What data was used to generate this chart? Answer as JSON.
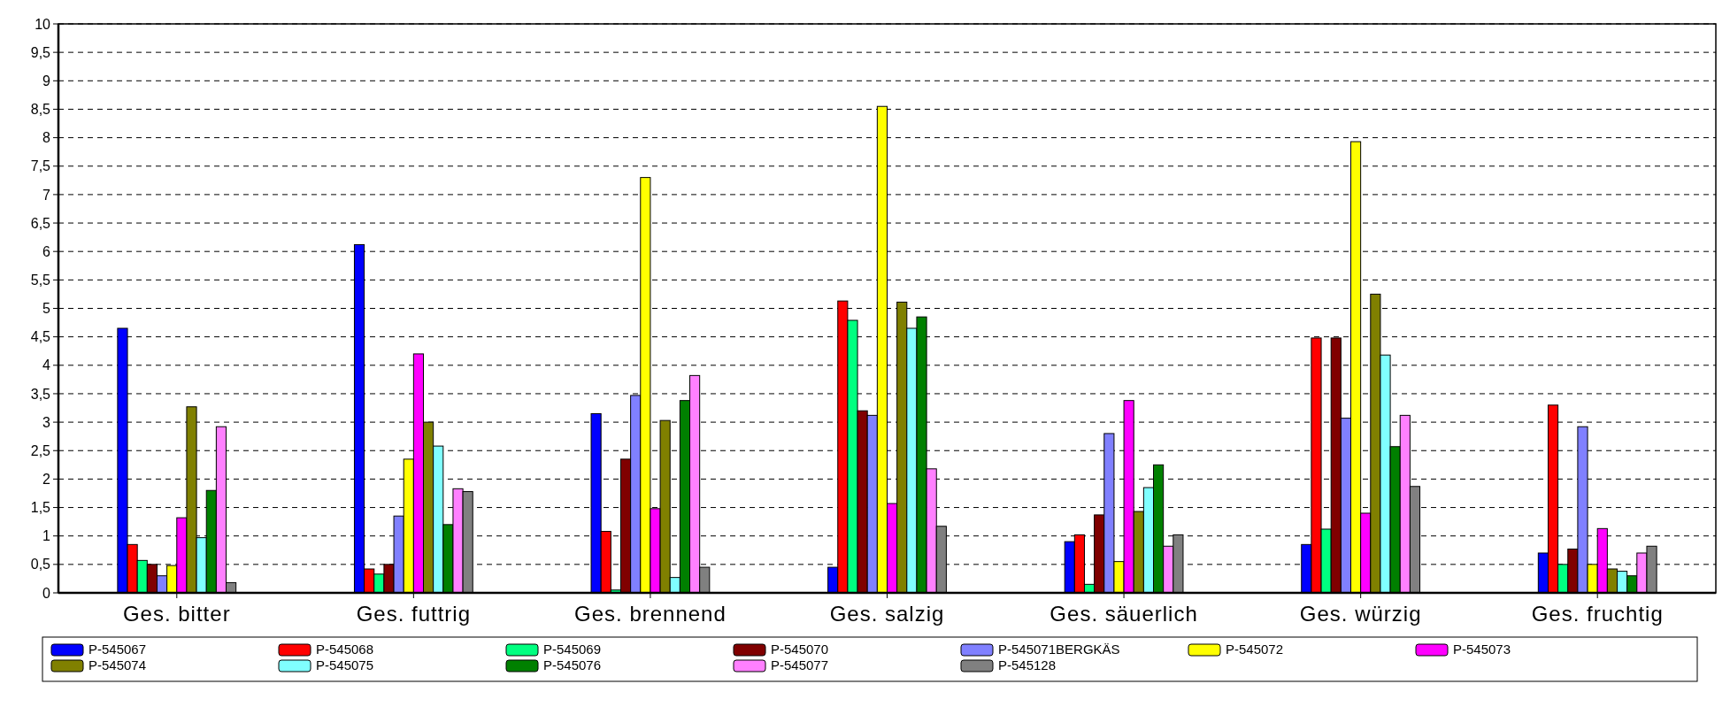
{
  "chart_data": {
    "type": "bar",
    "categories": [
      "Ges. bitter",
      "Ges. futtrig",
      "Ges. brennend",
      "Ges. salzig",
      "Ges. säuerlich",
      "Ges. würzig",
      "Ges. fruchtig"
    ],
    "ylim": [
      0,
      10
    ],
    "yticks": [
      0,
      {
        "value": 0.5,
        "label": "0,5"
      },
      1,
      {
        "value": 1.5,
        "label": "1,5"
      },
      2,
      {
        "value": 2.5,
        "label": "2,5"
      },
      3,
      {
        "value": 3.5,
        "label": "3,5"
      },
      4,
      {
        "value": 4.5,
        "label": "4,5"
      },
      5,
      {
        "value": 5.5,
        "label": "5,5"
      },
      6,
      {
        "value": 6.5,
        "label": "6,5"
      },
      7,
      {
        "value": 7.5,
        "label": "7,5"
      },
      8,
      {
        "value": 8.5,
        "label": "8,5"
      },
      9,
      {
        "value": 9.5,
        "label": "9,5"
      },
      10
    ],
    "grid": "y",
    "legend": "bottom",
    "series": [
      {
        "name": "P-545067",
        "color": "#0000ff",
        "values": [
          4.65,
          6.12,
          3.15,
          0.45,
          0.9,
          0.85,
          0.7
        ]
      },
      {
        "name": "P-545068",
        "color": "#ff0000",
        "values": [
          0.85,
          0.42,
          1.08,
          5.13,
          1.02,
          4.48,
          3.3
        ]
      },
      {
        "name": "P-545069",
        "color": "#00ff80",
        "values": [
          0.57,
          0.33,
          0.05,
          4.79,
          0.15,
          1.12,
          0.5
        ]
      },
      {
        "name": "P-545070",
        "color": "#800000",
        "values": [
          0.5,
          0.5,
          2.35,
          3.2,
          1.37,
          4.48,
          0.77
        ]
      },
      {
        "name": "P-545071BERGKÄS",
        "color": "#8080ff",
        "values": [
          0.3,
          1.35,
          3.47,
          3.12,
          2.8,
          3.07,
          2.92
        ]
      },
      {
        "name": "P-545072",
        "color": "#ffff00",
        "values": [
          0.48,
          2.35,
          7.3,
          8.55,
          0.55,
          7.93,
          0.5
        ]
      },
      {
        "name": "P-545073",
        "color": "#ff00ff",
        "values": [
          1.32,
          4.2,
          1.48,
          1.57,
          3.38,
          1.4,
          1.13
        ]
      },
      {
        "name": "P-545074",
        "color": "#808000",
        "values": [
          3.27,
          3.0,
          3.03,
          5.11,
          1.43,
          5.25,
          0.42
        ]
      },
      {
        "name": "P-545075",
        "color": "#80ffff",
        "values": [
          0.97,
          2.58,
          0.27,
          4.65,
          1.85,
          4.18,
          0.38
        ]
      },
      {
        "name": "P-545076",
        "color": "#008000",
        "values": [
          1.8,
          1.2,
          3.38,
          4.85,
          2.25,
          2.57,
          0.3
        ]
      },
      {
        "name": "P-545077",
        "color": "#ff80ff",
        "values": [
          2.92,
          1.83,
          3.82,
          2.18,
          0.82,
          3.12,
          0.7
        ]
      },
      {
        "name": "P-545128",
        "color": "#808080",
        "values": [
          0.18,
          1.78,
          0.45,
          1.17,
          1.02,
          1.87,
          0.82
        ]
      }
    ]
  }
}
